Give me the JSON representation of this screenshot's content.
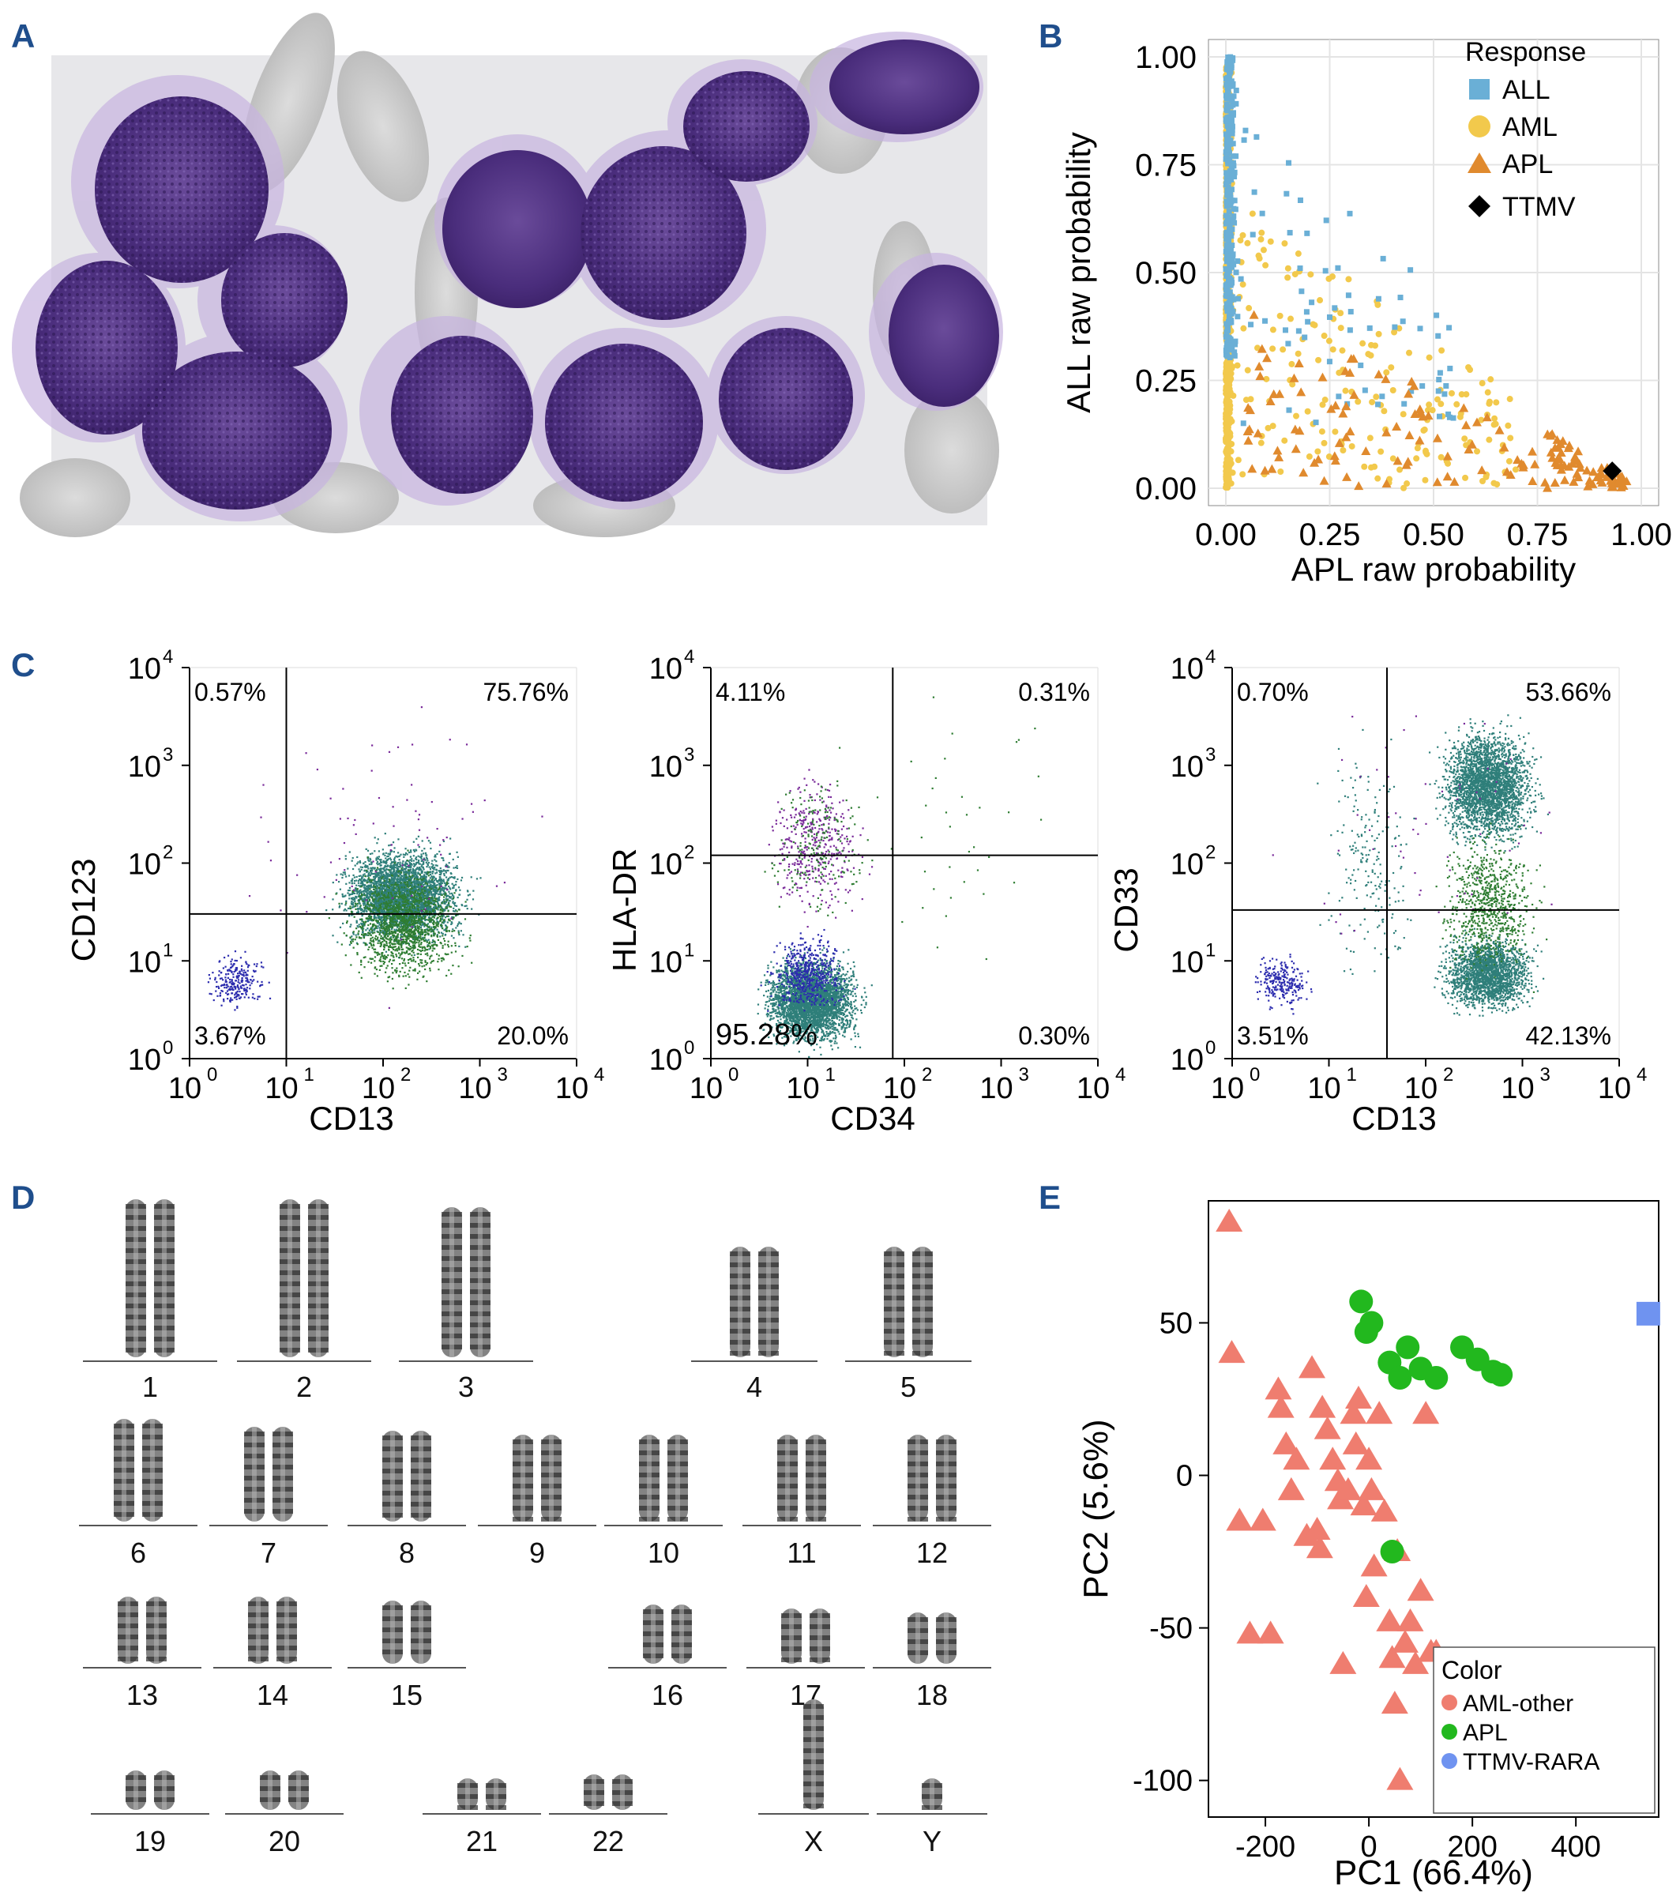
{
  "panels": {
    "a": {
      "letter": "A"
    },
    "b": {
      "letter": "B"
    },
    "c": {
      "letter": "C"
    },
    "d": {
      "letter": "D"
    },
    "e": {
      "letter": "E"
    }
  },
  "colors": {
    "all": "#6aafd6",
    "aml": "#f2c94c",
    "apl": "#e08a2e",
    "ttmv": "#000000",
    "aml_other": "#ef7d6f",
    "apl_e": "#22b81e",
    "ttmv_rara": "#6f93f0",
    "panel_letter": "#1f4e8c"
  },
  "chart_b": {
    "type": "scatter",
    "xlabel": "APL raw probability",
    "ylabel": "ALL raw probability",
    "xlim": [
      0,
      1
    ],
    "ylim": [
      0,
      1
    ],
    "xticks": [
      "0.00",
      "0.25",
      "0.50",
      "0.75",
      "1.00"
    ],
    "yticks": [
      "0.00",
      "0.25",
      "0.50",
      "0.75",
      "1.00"
    ],
    "legend_title": "Response",
    "legend": [
      "ALL",
      "AML",
      "APL",
      "TTMV"
    ],
    "ttmv_point": [
      0.93,
      0.04
    ]
  },
  "flow": [
    {
      "xlabel": "CD13",
      "ylabel": "CD123",
      "q_ul": "0.57%",
      "q_ur": "75.76%",
      "q_ll": "3.67%",
      "q_lr": "20.0%"
    },
    {
      "xlabel": "CD34",
      "ylabel": "HLA-DR",
      "q_ul": "4.11%",
      "q_ur": "0.31%",
      "q_ll": "95.28%",
      "q_lr": "0.30%"
    },
    {
      "xlabel": "CD13",
      "ylabel": "CD33",
      "q_ul": "0.70%",
      "q_ur": "53.66%",
      "q_ll": "3.51%",
      "q_lr": "42.13%"
    }
  ],
  "flow_ticks": [
    "10",
    "10",
    "10",
    "10",
    "10"
  ],
  "flow_exps": [
    "0",
    "1",
    "2",
    "3",
    "4"
  ],
  "karyotype": {
    "labels": [
      "1",
      "2",
      "3",
      "4",
      "5",
      "6",
      "7",
      "8",
      "9",
      "10",
      "11",
      "12",
      "13",
      "14",
      "15",
      "16",
      "17",
      "18",
      "19",
      "20",
      "21",
      "22",
      "X",
      "Y"
    ]
  },
  "chart_data": {
    "type": "scatter",
    "title": "",
    "xlabel": "PC1 (66.4%)",
    "ylabel": "PC2 (5.6%)",
    "xlim": [
      -310,
      560
    ],
    "ylim": [
      -112,
      90
    ],
    "xticks": [
      "-200",
      "0",
      "200",
      "400"
    ],
    "yticks": [
      "50",
      "0",
      "-50",
      "-100"
    ],
    "legend_title": "Color",
    "series": [
      {
        "name": "AML-other",
        "points": [
          [
            -270,
            83
          ],
          [
            -265,
            40
          ],
          [
            -250,
            -15
          ],
          [
            -230,
            -52
          ],
          [
            -205,
            -15
          ],
          [
            -190,
            -52
          ],
          [
            -175,
            28
          ],
          [
            -170,
            22
          ],
          [
            -160,
            10
          ],
          [
            -150,
            -5
          ],
          [
            -140,
            5
          ],
          [
            -120,
            -20
          ],
          [
            -110,
            35
          ],
          [
            -100,
            -18
          ],
          [
            -95,
            -24
          ],
          [
            -90,
            22
          ],
          [
            -80,
            15
          ],
          [
            -70,
            5
          ],
          [
            -60,
            -2
          ],
          [
            -55,
            -8
          ],
          [
            -50,
            -62
          ],
          [
            -40,
            -5
          ],
          [
            -30,
            20
          ],
          [
            -25,
            10
          ],
          [
            -20,
            25
          ],
          [
            -10,
            -10
          ],
          [
            -5,
            -40
          ],
          [
            0,
            5
          ],
          [
            5,
            -5
          ],
          [
            10,
            -30
          ],
          [
            20,
            20
          ],
          [
            30,
            -12
          ],
          [
            40,
            -48
          ],
          [
            45,
            -60
          ],
          [
            50,
            -75
          ],
          [
            55,
            -25
          ],
          [
            60,
            -100
          ],
          [
            70,
            -55
          ],
          [
            80,
            -48
          ],
          [
            90,
            -62
          ],
          [
            100,
            -38
          ],
          [
            110,
            20
          ],
          [
            120,
            -58
          ],
          [
            130,
            -58
          ]
        ]
      },
      {
        "name": "APL",
        "points": [
          [
            -15,
            57
          ],
          [
            -5,
            47
          ],
          [
            5,
            50
          ],
          [
            40,
            37
          ],
          [
            60,
            32
          ],
          [
            75,
            42
          ],
          [
            100,
            35
          ],
          [
            130,
            32
          ],
          [
            180,
            42
          ],
          [
            210,
            38
          ],
          [
            240,
            34
          ],
          [
            255,
            33
          ],
          [
            45,
            -25
          ]
        ]
      },
      {
        "name": "TTMV-RARA",
        "points": [
          [
            540,
            53
          ]
        ]
      }
    ]
  }
}
